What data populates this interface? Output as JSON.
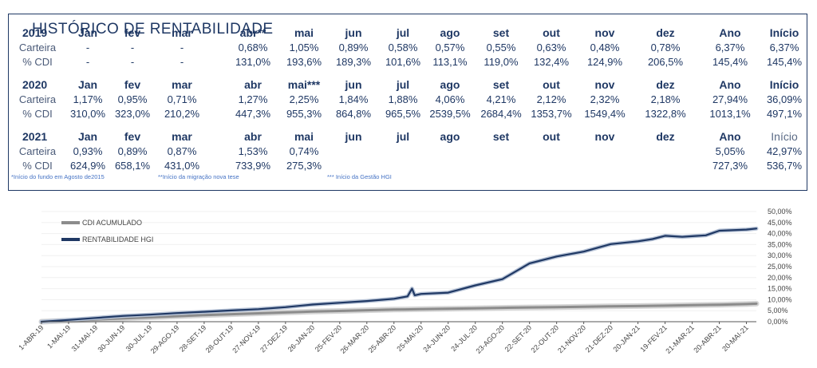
{
  "table": {
    "title": "HISTÓRICO DE RENTABILIDADE",
    "rows": [
      {
        "year": "2019",
        "headers": [
          "Jan",
          "fev",
          "mar",
          "abr**",
          "mai",
          "jun",
          "jul",
          "ago",
          "set",
          "out",
          "nov",
          "dez",
          "Ano",
          "Início"
        ],
        "carteira_label": "Carteira",
        "carteira": [
          "-",
          "-",
          "-",
          "0,68%",
          "1,05%",
          "0,89%",
          "0,58%",
          "0,57%",
          "0,55%",
          "0,63%",
          "0,48%",
          "0,78%",
          "6,37%",
          "6,37%"
        ],
        "cdi_label": "% CDI",
        "cdi": [
          "-",
          "-",
          "-",
          "131,0%",
          "193,6%",
          "189,3%",
          "101,6%",
          "113,1%",
          "119,0%",
          "132,4%",
          "124,9%",
          "206,5%",
          "145,4%",
          "145,4%"
        ]
      },
      {
        "year": "2020",
        "headers": [
          "Jan",
          "fev",
          "mar",
          "abr",
          "mai***",
          "jun",
          "jul",
          "ago",
          "set",
          "out",
          "nov",
          "dez",
          "Ano",
          "Início"
        ],
        "carteira_label": "Carteira",
        "carteira": [
          "1,17%",
          "0,95%",
          "0,71%",
          "1,27%",
          "2,25%",
          "1,84%",
          "1,88%",
          "4,06%",
          "4,21%",
          "2,12%",
          "2,32%",
          "2,18%",
          "27,94%",
          "36,09%"
        ],
        "cdi_label": "% CDI",
        "cdi": [
          "310,0%",
          "323,0%",
          "210,2%",
          "447,3%",
          "955,3%",
          "864,8%",
          "965,5%",
          "2539,5%",
          "2684,4%",
          "1353,7%",
          "1549,4%",
          "1322,8%",
          "1013,1%",
          "497,1%"
        ]
      },
      {
        "year": "2021",
        "headers": [
          "Jan",
          "fev",
          "mar",
          "abr",
          "mai",
          "jun",
          "jul",
          "ago",
          "set",
          "out",
          "nov",
          "dez",
          "Ano",
          "Início"
        ],
        "carteira_label": "Carteira",
        "carteira": [
          "0,93%",
          "0,89%",
          "0,87%",
          "1,53%",
          "0,74%",
          "",
          "",
          "",
          "",
          "",
          "",
          "",
          "5,05%",
          "42,97%"
        ],
        "cdi_label": "% CDI",
        "cdi": [
          "624,9%",
          "658,1%",
          "431,0%",
          "733,9%",
          "275,3%",
          "",
          "",
          "",
          "",
          "",
          "",
          "",
          "727,3%",
          "536,7%"
        ]
      }
    ],
    "footnotes": [
      "*Início do fundo em Agosto de2015",
      "**Início da migração nova tese",
      "*** Início da Gestão HGI"
    ]
  },
  "chart_data": {
    "type": "line",
    "title": "",
    "xlabel": "",
    "ylabel": "",
    "legend_position": "top-left",
    "ylim": [
      0,
      50
    ],
    "y_ticks": [
      "0,00%",
      "5,00%",
      "10,00%",
      "15,00%",
      "20,00%",
      "25,00%",
      "30,00%",
      "35,00%",
      "40,00%",
      "45,00%",
      "50,00%"
    ],
    "x_ticks": [
      "1-ABR-19",
      "1-MAI-19",
      "31-MAI-19",
      "30-JUN-19",
      "30-JUL-19",
      "29-AGO-19",
      "28-SET-19",
      "28-OUT-19",
      "27-NOV-19",
      "27-DEZ-19",
      "26-JAN-20",
      "25-FEV-20",
      "26-MAR-20",
      "25-ABR-20",
      "25-MAI-20",
      "24-JUN-20",
      "24-JUL-20",
      "23-AGO-20",
      "22-SET-20",
      "22-OUT-20",
      "21-NOV-20",
      "21-DEZ-20",
      "20-JAN-21",
      "19-FEV-21",
      "21-MAR-21",
      "20-ABR-21",
      "20-MAI-21"
    ],
    "series": [
      {
        "name": "CDI ACUMULADO",
        "color": "#8c8c8c",
        "x": [
          "1-ABR-19",
          "1-MAI-19",
          "31-MAI-19",
          "30-JUN-19",
          "30-JUL-19",
          "29-AGO-19",
          "28-SET-19",
          "28-OUT-19",
          "27-NOV-19",
          "27-DEZ-19",
          "26-JAN-20",
          "25-FEV-20",
          "26-MAR-20",
          "25-ABR-20",
          "25-MAI-20",
          "24-JUN-20",
          "24-JUL-20",
          "23-AGO-20",
          "22-SET-20",
          "22-OUT-20",
          "21-NOV-20",
          "21-DEZ-20",
          "20-JAN-21",
          "19-FEV-21",
          "21-MAR-21",
          "20-ABR-21",
          "20-MAI-21",
          "31-MAI-21"
        ],
        "values": [
          0,
          0.5,
          1.0,
          1.5,
          2.0,
          2.5,
          3.0,
          3.4,
          3.8,
          4.2,
          4.6,
          4.9,
          5.2,
          5.5,
          5.7,
          5.9,
          6.1,
          6.3,
          6.5,
          6.6,
          6.8,
          7.0,
          7.1,
          7.3,
          7.5,
          7.7,
          8.0,
          8.2
        ]
      },
      {
        "name": "RENTABILIDADE HGI",
        "color": "#1f3864",
        "x": [
          "1-ABR-19",
          "1-MAI-19",
          "31-MAI-19",
          "30-JUN-19",
          "30-JUL-19",
          "29-AGO-19",
          "28-SET-19",
          "28-OUT-19",
          "27-NOV-19",
          "27-DEZ-19",
          "26-JAN-20",
          "25-FEV-20",
          "26-MAR-20",
          "25-ABR-20",
          "10-MAI-20",
          "15-MAI-20",
          "18-MAI-20",
          "25-MAI-20",
          "24-JUN-20",
          "24-JUL-20",
          "23-AGO-20",
          "22-SET-20",
          "22-OUT-20",
          "21-NOV-20",
          "21-DEZ-20",
          "20-JAN-21",
          "5-FEV-21",
          "19-FEV-21",
          "10-MAR-21",
          "21-MAR-21",
          "5-ABR-21",
          "20-ABR-21",
          "20-MAI-21",
          "31-MAI-21"
        ],
        "values": [
          0,
          0.8,
          1.7,
          2.6,
          3.2,
          3.9,
          4.5,
          5.1,
          5.7,
          6.6,
          7.8,
          8.6,
          9.4,
          10.4,
          11.5,
          15.0,
          12.0,
          12.6,
          13.2,
          16.5,
          19.3,
          26.5,
          29.6,
          31.8,
          35.2,
          36.5,
          37.5,
          39.0,
          38.5,
          38.8,
          39.2,
          41.3,
          41.8,
          42.3
        ]
      }
    ]
  }
}
